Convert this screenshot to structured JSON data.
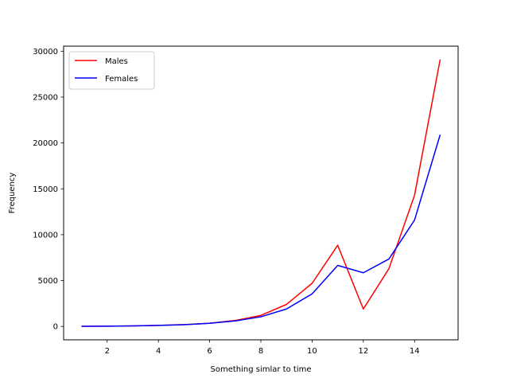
{
  "chart_data": {
    "type": "line",
    "title": "",
    "xlabel": "Something simlar to time",
    "ylabel": "Frequency",
    "x": [
      1,
      2,
      3,
      4,
      5,
      6,
      7,
      8,
      9,
      10,
      11,
      12,
      13,
      14,
      15
    ],
    "xlim": [
      0.3,
      15.7
    ],
    "ylim": [
      -1460,
      30550
    ],
    "xticks": [
      2,
      4,
      6,
      8,
      10,
      12,
      14
    ],
    "xtick_labels": [
      "2",
      "4",
      "6",
      "8",
      "10",
      "12",
      "14"
    ],
    "yticks": [
      0,
      5000,
      10000,
      15000,
      20000,
      25000,
      30000
    ],
    "ytick_labels": [
      "0",
      "5000",
      "10000",
      "15000",
      "20000",
      "25000",
      "30000"
    ],
    "grid": false,
    "legend_position": "top-left",
    "series": [
      {
        "name": "Males",
        "color": "#ff0000",
        "values": [
          10,
          30,
          60,
          110,
          200,
          350,
          650,
          1200,
          2400,
          4700,
          8850,
          1900,
          6300,
          14300,
          29100
        ]
      },
      {
        "name": "Females",
        "color": "#0000ff",
        "values": [
          10,
          30,
          60,
          110,
          190,
          340,
          600,
          1050,
          1900,
          3550,
          6650,
          5850,
          7350,
          11600,
          20900
        ]
      }
    ]
  }
}
